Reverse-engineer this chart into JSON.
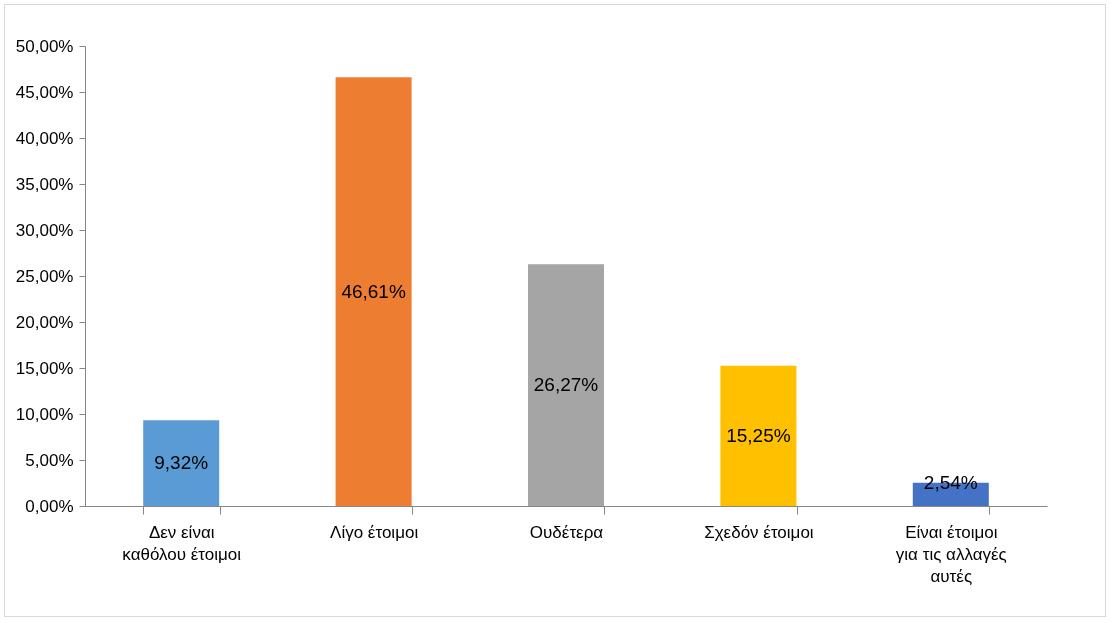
{
  "chart_data": {
    "type": "bar",
    "categories": [
      "Δεν είναι καθόλου έτοιμοι",
      "Λίγο έτοιμοι",
      "Ουδέτερα",
      "Σχεδόν έτοιμοι",
      "Είναι έτοιμοι για τις αλλαγές αυτές"
    ],
    "values": [
      9.32,
      46.61,
      26.27,
      15.25,
      2.54
    ],
    "colors": [
      "#5b9bd5",
      "#ed7d31",
      "#a5a5a5",
      "#ffc000",
      "#4472c4"
    ],
    "value_labels": [
      "9,32%",
      "46,61%",
      "26,27%",
      "15,25%",
      "2,54%"
    ],
    "ylim": [
      0,
      50
    ],
    "yticks": [
      {
        "value": 0,
        "label": "0,00%"
      },
      {
        "value": 5,
        "label": "5,00%"
      },
      {
        "value": 10,
        "label": "10,00%"
      },
      {
        "value": 15,
        "label": "15,00%"
      },
      {
        "value": 20,
        "label": "20,00%"
      },
      {
        "value": 25,
        "label": "25,00%"
      },
      {
        "value": 30,
        "label": "30,00%"
      },
      {
        "value": 35,
        "label": "35,00%"
      },
      {
        "value": 40,
        "label": "40,00%"
      },
      {
        "value": 45,
        "label": "45,00%"
      },
      {
        "value": 50,
        "label": "50,00%"
      }
    ],
    "grid": false
  }
}
